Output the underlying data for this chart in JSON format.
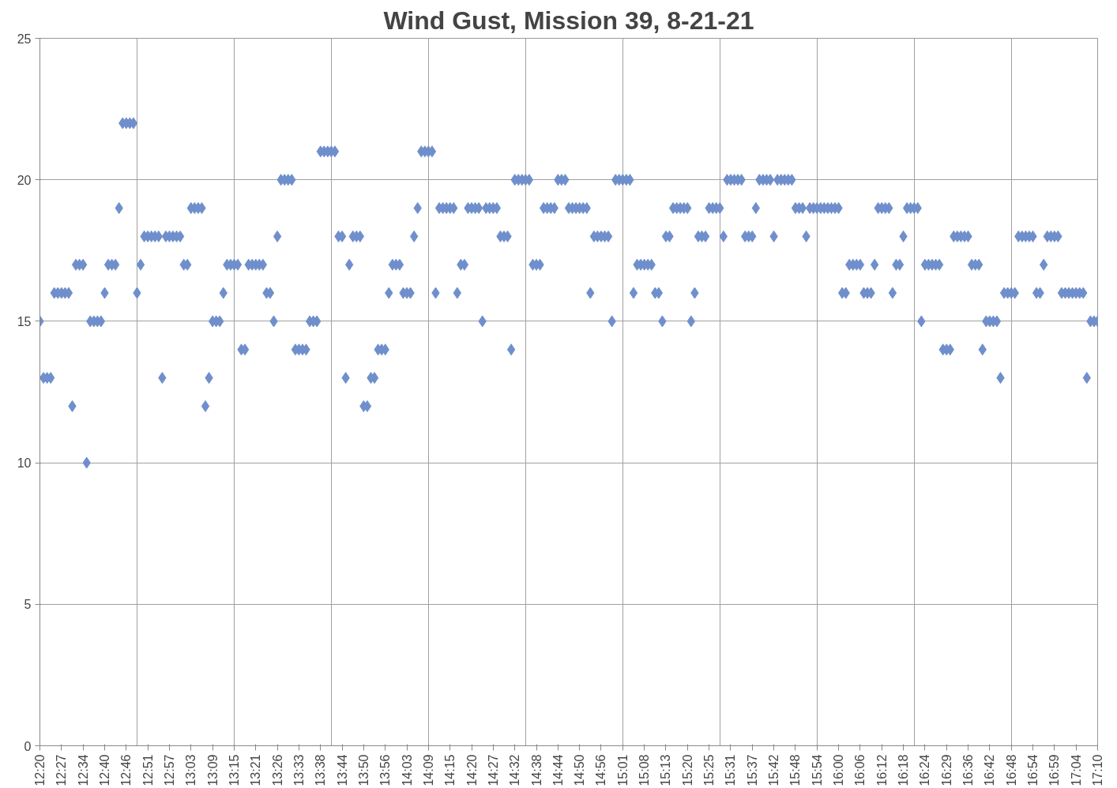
{
  "chart_data": {
    "type": "scatter",
    "title": "Wind Gust, Mission 39, 8-21-21",
    "categories": [
      "12:20",
      null,
      null,
      null,
      null,
      null,
      "12:27",
      null,
      null,
      null,
      null,
      null,
      "12:34",
      null,
      null,
      null,
      null,
      null,
      "12:40",
      null,
      null,
      null,
      null,
      null,
      "12:46",
      null,
      null,
      null,
      null,
      null,
      "12:51",
      null,
      null,
      null,
      null,
      null,
      "12:57",
      null,
      null,
      null,
      null,
      null,
      "13:03",
      null,
      null,
      null,
      null,
      null,
      "13:09",
      null,
      null,
      null,
      null,
      null,
      "13:15",
      null,
      null,
      null,
      null,
      null,
      "13:21",
      null,
      null,
      null,
      null,
      null,
      "13:26",
      null,
      null,
      null,
      null,
      null,
      "13:33",
      null,
      null,
      null,
      null,
      null,
      "13:38",
      null,
      null,
      null,
      null,
      null,
      "13:44",
      null,
      null,
      null,
      null,
      null,
      "13:50",
      null,
      null,
      null,
      null,
      null,
      "13:56",
      null,
      null,
      null,
      null,
      null,
      "14:03",
      null,
      null,
      null,
      null,
      null,
      "14:09",
      null,
      null,
      null,
      null,
      null,
      "14:15",
      null,
      null,
      null,
      null,
      null,
      "14:20",
      null,
      null,
      null,
      null,
      null,
      "14:27",
      null,
      null,
      null,
      null,
      null,
      "14:32",
      null,
      null,
      null,
      null,
      null,
      "14:38",
      null,
      null,
      null,
      null,
      null,
      "14:44",
      null,
      null,
      null,
      null,
      null,
      "14:50",
      null,
      null,
      null,
      null,
      null,
      "14:56",
      null,
      null,
      null,
      null,
      null,
      "15:01",
      null,
      null,
      null,
      null,
      null,
      "15:08",
      null,
      null,
      null,
      null,
      null,
      "15:13",
      null,
      null,
      null,
      null,
      null,
      "15:20",
      null,
      null,
      null,
      null,
      null,
      "15:25",
      null,
      null,
      null,
      null,
      null,
      "15:31",
      null,
      null,
      null,
      null,
      null,
      "15:37",
      null,
      null,
      null,
      null,
      null,
      "15:42",
      null,
      null,
      null,
      null,
      null,
      "15:48",
      null,
      null,
      null,
      null,
      null,
      "15:54",
      null,
      null,
      null,
      null,
      null,
      "16:00",
      null,
      null,
      null,
      null,
      null,
      "16:06",
      null,
      null,
      null,
      null,
      null,
      "16:12",
      null,
      null,
      null,
      null,
      null,
      "16:18",
      null,
      null,
      null,
      null,
      null,
      "16:24",
      null,
      null,
      null,
      null,
      null,
      "16:29",
      null,
      null,
      null,
      null,
      null,
      "16:36",
      null,
      null,
      null,
      null,
      null,
      "16:42",
      null,
      null,
      null,
      null,
      null,
      "16:48",
      null,
      null,
      null,
      null,
      null,
      "16:54",
      null,
      null,
      null,
      null,
      null,
      "16:59",
      null,
      null,
      null,
      null,
      null,
      "17:04",
      null,
      null,
      null,
      null,
      null,
      "17:10"
    ],
    "values": [
      15,
      13,
      13,
      13,
      16,
      16,
      16,
      16,
      16,
      12,
      17,
      17,
      17,
      10,
      15,
      15,
      15,
      15,
      16,
      17,
      17,
      17,
      19,
      22,
      22,
      22,
      22,
      16,
      17,
      18,
      18,
      18,
      18,
      18,
      13,
      18,
      18,
      18,
      18,
      18,
      17,
      17,
      19,
      19,
      19,
      19,
      12,
      13,
      15,
      15,
      15,
      16,
      17,
      17,
      17,
      17,
      14,
      14,
      17,
      17,
      17,
      17,
      17,
      16,
      16,
      15,
      18,
      20,
      20,
      20,
      20,
      14,
      14,
      14,
      14,
      15,
      15,
      15,
      21,
      21,
      21,
      21,
      21,
      18,
      18,
      13,
      17,
      18,
      18,
      18,
      12,
      12,
      13,
      13,
      14,
      14,
      14,
      16,
      17,
      17,
      17,
      16,
      16,
      16,
      18,
      19,
      21,
      21,
      21,
      21,
      16,
      19,
      19,
      19,
      19,
      19,
      16,
      17,
      17,
      19,
      19,
      19,
      19,
      15,
      19,
      19,
      19,
      19,
      18,
      18,
      18,
      14,
      20,
      20,
      20,
      20,
      20,
      17,
      17,
      17,
      19,
      19,
      19,
      19,
      20,
      20,
      20,
      19,
      19,
      19,
      19,
      19,
      19,
      16,
      18,
      18,
      18,
      18,
      18,
      15,
      20,
      20,
      20,
      20,
      20,
      16,
      17,
      17,
      17,
      17,
      17,
      16,
      16,
      15,
      18,
      18,
      19,
      19,
      19,
      19,
      19,
      15,
      16,
      18,
      18,
      18,
      19,
      19,
      19,
      19,
      18,
      20,
      20,
      20,
      20,
      20,
      18,
      18,
      18,
      19,
      20,
      20,
      20,
      20,
      18,
      20,
      20,
      20,
      20,
      20,
      19,
      19,
      19,
      18,
      19,
      19,
      19,
      19,
      19,
      19,
      19,
      19,
      19,
      16,
      16,
      17,
      17,
      17,
      17,
      16,
      16,
      16,
      17,
      19,
      19,
      19,
      19,
      16,
      17,
      17,
      18,
      19,
      19,
      19,
      19,
      15,
      17,
      17,
      17,
      17,
      17,
      14,
      14,
      14,
      18,
      18,
      18,
      18,
      18,
      17,
      17,
      17,
      14,
      15,
      15,
      15,
      15,
      13,
      16,
      16,
      16,
      16,
      18,
      18,
      18,
      18,
      18,
      16,
      16,
      17,
      18,
      18,
      18,
      18,
      16,
      16,
      16,
      16,
      16,
      16,
      16,
      13,
      15,
      15,
      15
    ],
    "color": "#6f8fcc",
    "marker": "diamond",
    "ylim": [
      0,
      25
    ],
    "yticks": [
      0,
      5,
      10,
      15,
      20,
      25
    ],
    "grid": true
  }
}
